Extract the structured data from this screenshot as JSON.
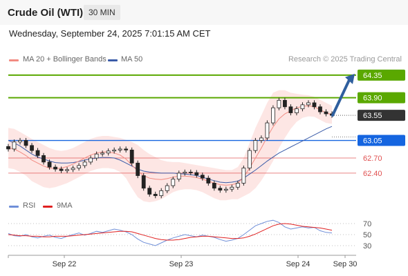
{
  "header": {
    "instrument": "Crude Oil (WTI)",
    "timeframe": "30 MIN"
  },
  "datetime": "Wednesday, September 24, 2025 7:01:15 AM CET",
  "legend": {
    "ma20_label": "MA 20 + Bollinger Bands",
    "ma50_label": "MA 50",
    "rsi_label": "RSI",
    "ma9_label": "9MA"
  },
  "credit": "Research © 2025 Trading Central",
  "colors": {
    "ma20": "#f28b82",
    "bollinger_fill": "#fde3e1",
    "ma50": "#3a5ba8",
    "resistance": "#5aa800",
    "current": "#333333",
    "pivot": "#1565e0",
    "support": "#e05050",
    "rsi": "#6f8fd8",
    "rsi_ma": "#e02020",
    "arrow": "#2f5f9e"
  },
  "chart_data": [
    {
      "type": "candlestick",
      "title": "Crude Oil (WTI)",
      "timeframe": "30 MIN",
      "x_ticks": [
        "Sep 22",
        "Sep 23",
        "Sep 24",
        "Sep 30"
      ],
      "ylim": [
        62.0,
        64.5
      ],
      "levels": [
        {
          "value": 64.35,
          "label": "64.35",
          "kind": "resistance"
        },
        {
          "value": 63.9,
          "label": "63.90",
          "kind": "resistance"
        },
        {
          "value": 63.55,
          "label": "63.55",
          "kind": "current"
        },
        {
          "value": 63.05,
          "label": "63.05",
          "kind": "pivot"
        },
        {
          "value": 62.7,
          "label": "62.70",
          "kind": "support"
        },
        {
          "value": 62.4,
          "label": "62.40",
          "kind": "support"
        }
      ],
      "close": [
        62.88,
        63.02,
        63.05,
        62.95,
        62.85,
        62.75,
        62.62,
        62.52,
        62.48,
        62.45,
        62.47,
        62.5,
        62.55,
        62.62,
        62.7,
        62.78,
        62.8,
        62.84,
        62.86,
        62.88,
        62.86,
        62.6,
        62.35,
        62.1,
        61.98,
        61.95,
        62.05,
        62.15,
        62.28,
        62.4,
        62.42,
        62.41,
        62.36,
        62.3,
        62.2,
        62.1,
        62.06,
        62.08,
        62.12,
        62.2,
        62.5,
        62.85,
        63.05,
        63.1,
        63.4,
        63.7,
        63.85,
        63.72,
        63.6,
        63.68,
        63.76,
        63.8,
        63.72,
        63.62,
        63.58,
        63.55
      ],
      "ma20": [
        62.9,
        62.88,
        62.82,
        62.75,
        62.66,
        62.6,
        62.54,
        62.5,
        62.49,
        62.5,
        62.53,
        62.58,
        62.64,
        62.7,
        62.76,
        62.8,
        62.82,
        62.82,
        62.8,
        62.76,
        62.68,
        62.56,
        62.44,
        62.35,
        62.3,
        62.28,
        62.27,
        62.29,
        62.32,
        62.34,
        62.34,
        62.33,
        62.31,
        62.28,
        62.24,
        62.2,
        62.17,
        62.16,
        62.17,
        62.2,
        62.32,
        62.5,
        62.7,
        62.9,
        63.12,
        63.32,
        63.48,
        63.58,
        63.64,
        63.7,
        63.73,
        63.74,
        63.72,
        63.66,
        63.6,
        63.56
      ],
      "ma50": [
        63.05,
        63.0,
        62.94,
        62.86,
        62.78,
        62.72,
        62.68,
        62.64,
        62.61,
        62.6,
        62.6,
        62.61,
        62.63,
        62.66,
        62.68,
        62.7,
        62.71,
        62.71,
        62.7,
        62.66,
        62.6,
        62.54,
        62.48,
        62.44,
        62.42,
        62.41,
        62.4,
        62.4,
        62.4,
        62.39,
        62.38,
        62.37,
        62.35,
        62.32,
        62.28,
        62.25,
        62.22,
        62.21,
        62.22,
        62.24,
        62.3,
        62.38,
        62.46,
        62.55,
        62.64,
        62.72,
        62.8,
        62.86,
        62.92,
        62.98,
        63.04,
        63.1,
        63.16,
        63.22,
        63.28,
        63.33
      ],
      "bb_upper": [
        63.3,
        63.28,
        63.22,
        63.15,
        63.08,
        63.02,
        62.96,
        62.9,
        62.86,
        62.84,
        62.86,
        62.9,
        62.96,
        63.02,
        63.08,
        63.12,
        63.14,
        63.14,
        63.12,
        63.1,
        63.06,
        63.02,
        62.96,
        62.86,
        62.78,
        62.72,
        62.66,
        62.63,
        62.62,
        62.62,
        62.6,
        62.58,
        62.56,
        62.54,
        62.52,
        62.5,
        62.48,
        62.46,
        62.46,
        62.52,
        62.7,
        63.0,
        63.3,
        63.55,
        63.8,
        64.0,
        64.05,
        64.05,
        64.0,
        63.98,
        63.96,
        63.95,
        63.92,
        63.86,
        63.8,
        63.74
      ],
      "bb_lower": [
        62.5,
        62.48,
        62.42,
        62.35,
        62.24,
        62.18,
        62.12,
        62.1,
        62.12,
        62.16,
        62.2,
        62.26,
        62.32,
        62.38,
        62.44,
        62.48,
        62.5,
        62.5,
        62.48,
        62.42,
        62.3,
        62.1,
        61.92,
        61.84,
        61.82,
        61.84,
        61.88,
        61.95,
        62.02,
        62.06,
        62.08,
        62.08,
        62.06,
        62.02,
        61.96,
        61.9,
        61.86,
        61.86,
        61.88,
        61.88,
        61.94,
        62.0,
        62.1,
        62.25,
        62.44,
        62.64,
        62.9,
        63.1,
        63.28,
        63.42,
        63.5,
        63.53,
        63.52,
        63.46,
        63.4,
        63.38
      ],
      "forecast_arrow": {
        "from": 63.55,
        "to": 64.35
      }
    },
    {
      "type": "line",
      "series": [
        {
          "name": "RSI",
          "values": [
            52,
            48,
            47,
            50,
            46,
            44,
            47,
            49,
            45,
            43,
            47,
            50,
            53,
            49,
            52,
            56,
            54,
            57,
            60,
            58,
            55,
            50,
            42,
            36,
            33,
            30,
            35,
            40,
            44,
            47,
            50,
            48,
            46,
            49,
            47,
            45,
            41,
            38,
            40,
            43,
            50,
            58,
            66,
            70,
            74,
            76,
            72,
            64,
            60,
            62,
            64,
            62,
            63,
            57,
            54,
            53
          ]
        },
        {
          "name": "9MA",
          "values": [
            50,
            49,
            48,
            48,
            47,
            47,
            46,
            46,
            47,
            47,
            47,
            48,
            49,
            50,
            51,
            52,
            53,
            54,
            55,
            56,
            56,
            55,
            52,
            49,
            46,
            43,
            41,
            40,
            40,
            41,
            43,
            45,
            46,
            47,
            47,
            46,
            45,
            44,
            43,
            43,
            44,
            47,
            51,
            56,
            61,
            66,
            69,
            70,
            69,
            67,
            65,
            64,
            63,
            62,
            60,
            58
          ]
        }
      ],
      "y_ticks": [
        70,
        50,
        30
      ],
      "ylim": [
        15,
        85
      ]
    }
  ]
}
